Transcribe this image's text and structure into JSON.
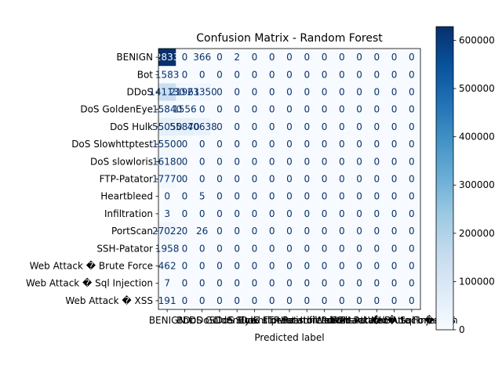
{
  "chart_data": {
    "type": "heatmap",
    "title": "Confusion Matrix - Random Forest",
    "xlabel": "Predicted label",
    "ylabel": "",
    "labels": [
      "BENIGN",
      "Bot",
      "DDoS",
      "DoS GoldenEye",
      "DoS Hulk",
      "DoS Slowhttptest",
      "DoS slowloris",
      "FTP-Patator",
      "Heartbleed",
      "Infiltration",
      "PortScan",
      "SSH-Patator",
      "Web Attack � Brute Force",
      "Web Attack � Sql Injection",
      "Web Attack � XSS"
    ],
    "matrix_display": [
      [
        "628338",
        "0",
        "366",
        "0",
        "2",
        "0",
        "0",
        "0",
        "0",
        "0",
        "0",
        "0",
        "0",
        "0",
        "0"
      ],
      [
        "1583",
        "0",
        "0",
        "0",
        "0",
        "0",
        "0",
        "0",
        "0",
        "0",
        "0",
        "0",
        "0",
        "0",
        "0"
      ],
      [
        "141130",
        "21961",
        "23350",
        "0",
        "0",
        "0",
        "0",
        "0",
        "0",
        "0",
        "0",
        "0",
        "0",
        "0",
        "0"
      ],
      [
        "15840",
        "1556",
        "0",
        "0",
        "0",
        "0",
        "0",
        "0",
        "0",
        "0",
        "0",
        "0",
        "0",
        "0",
        "0"
      ],
      [
        "55050",
        "55870",
        "40638",
        "0",
        "0",
        "0",
        "0",
        "0",
        "0",
        "0",
        "0",
        "0",
        "0",
        "0",
        "0"
      ],
      [
        "15500",
        "0",
        "0",
        "0",
        "0",
        "0",
        "0",
        "0",
        "0",
        "0",
        "0",
        "0",
        "0",
        "0",
        "0"
      ],
      [
        "16180",
        "0",
        "0",
        "0",
        "0",
        "0",
        "0",
        "0",
        "0",
        "0",
        "0",
        "0",
        "0",
        "0",
        "0"
      ],
      [
        "17770",
        "0",
        "0",
        "0",
        "0",
        "0",
        "0",
        "0",
        "0",
        "0",
        "0",
        "0",
        "0",
        "0",
        "0"
      ],
      [
        "0",
        "0",
        "5",
        "0",
        "0",
        "0",
        "0",
        "0",
        "0",
        "0",
        "0",
        "0",
        "0",
        "0",
        "0"
      ],
      [
        "3",
        "0",
        "0",
        "0",
        "0",
        "0",
        "0",
        "0",
        "0",
        "0",
        "0",
        "0",
        "0",
        "0",
        "0"
      ],
      [
        "27022",
        "0",
        "26",
        "0",
        "0",
        "0",
        "0",
        "0",
        "0",
        "0",
        "0",
        "0",
        "0",
        "0",
        "0"
      ],
      [
        "1958",
        "0",
        "0",
        "0",
        "0",
        "0",
        "0",
        "0",
        "0",
        "0",
        "0",
        "0",
        "0",
        "0",
        "0"
      ],
      [
        "462",
        "0",
        "0",
        "0",
        "0",
        "0",
        "0",
        "0",
        "0",
        "0",
        "0",
        "0",
        "0",
        "0",
        "0"
      ],
      [
        "7",
        "0",
        "0",
        "0",
        "0",
        "0",
        "0",
        "0",
        "0",
        "0",
        "0",
        "0",
        "0",
        "0",
        "0"
      ],
      [
        "191",
        "0",
        "0",
        "0",
        "0",
        "0",
        "0",
        "0",
        "0",
        "0",
        "0",
        "0",
        "0",
        "0",
        "0"
      ]
    ],
    "matrix_values": [
      [
        628338,
        0,
        366,
        0,
        2,
        0,
        0,
        0,
        0,
        0,
        0,
        0,
        0,
        0,
        0
      ],
      [
        1583,
        0,
        0,
        0,
        0,
        0,
        0,
        0,
        0,
        0,
        0,
        0,
        0,
        0,
        0
      ],
      [
        141130,
        21961,
        23350,
        0,
        0,
        0,
        0,
        0,
        0,
        0,
        0,
        0,
        0,
        0,
        0
      ],
      [
        15840,
        1556,
        0,
        0,
        0,
        0,
        0,
        0,
        0,
        0,
        0,
        0,
        0,
        0,
        0
      ],
      [
        55050,
        55870,
        40638,
        0,
        0,
        0,
        0,
        0,
        0,
        0,
        0,
        0,
        0,
        0,
        0
      ],
      [
        15500,
        0,
        0,
        0,
        0,
        0,
        0,
        0,
        0,
        0,
        0,
        0,
        0,
        0,
        0
      ],
      [
        16180,
        0,
        0,
        0,
        0,
        0,
        0,
        0,
        0,
        0,
        0,
        0,
        0,
        0,
        0
      ],
      [
        17770,
        0,
        0,
        0,
        0,
        0,
        0,
        0,
        0,
        0,
        0,
        0,
        0,
        0,
        0
      ],
      [
        0,
        0,
        5,
        0,
        0,
        0,
        0,
        0,
        0,
        0,
        0,
        0,
        0,
        0,
        0
      ],
      [
        3,
        0,
        0,
        0,
        0,
        0,
        0,
        0,
        0,
        0,
        0,
        0,
        0,
        0,
        0
      ],
      [
        27022,
        0,
        26,
        0,
        0,
        0,
        0,
        0,
        0,
        0,
        0,
        0,
        0,
        0,
        0
      ],
      [
        1958,
        0,
        0,
        0,
        0,
        0,
        0,
        0,
        0,
        0,
        0,
        0,
        0,
        0,
        0
      ],
      [
        462,
        0,
        0,
        0,
        0,
        0,
        0,
        0,
        0,
        0,
        0,
        0,
        0,
        0,
        0
      ],
      [
        7,
        0,
        0,
        0,
        0,
        0,
        0,
        0,
        0,
        0,
        0,
        0,
        0,
        0,
        0
      ],
      [
        191,
        0,
        0,
        0,
        0,
        0,
        0,
        0,
        0,
        0,
        0,
        0,
        0,
        0,
        0
      ]
    ],
    "colorbar": {
      "range": [
        0,
        628338
      ],
      "ticks": [
        0,
        100000,
        200000,
        300000,
        400000,
        500000,
        600000
      ],
      "tick_labels": [
        "0",
        "100000",
        "200000",
        "300000",
        "400000",
        "500000",
        "600000"
      ]
    },
    "colormap": {
      "name": "Blues",
      "stops": [
        "#f7fbff",
        "#deebf7",
        "#c6dbef",
        "#9ecae1",
        "#6baed6",
        "#4292c6",
        "#2171b5",
        "#08519c",
        "#08306b"
      ],
      "text_light": "#ffffff",
      "text_dark": "#08306b"
    }
  }
}
